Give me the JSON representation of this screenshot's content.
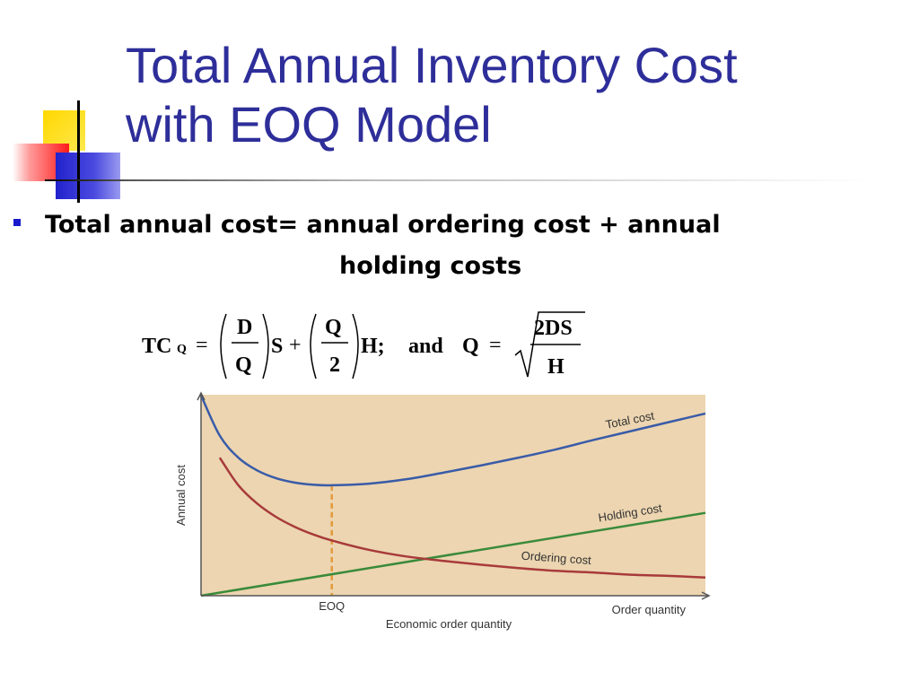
{
  "slide": {
    "title_line1": "Total Annual Inventory Cost",
    "title_line2": "with EOQ Model",
    "bullet_line1": "Total annual cost= annual ordering cost + annual",
    "bullet_line2": "holding  costs"
  },
  "formula": {
    "tc": "TC",
    "tc_sub": "Q",
    "eq": "=",
    "frac1_num": "D",
    "frac1_den": "Q",
    "s": "S",
    "plus": "+",
    "frac2_num": "Q",
    "frac2_den": "2",
    "h_end": "H;",
    "and": "and",
    "q": "Q",
    "eq2": "=",
    "root_num": "2DS",
    "root_den": "H"
  },
  "chart_data": {
    "type": "line",
    "title": "",
    "xlabel": "Economic order quantity",
    "ylabel": "Annual cost",
    "x_axis_end_label": "Order quantity",
    "eoq_label": "EOQ",
    "x": [
      0.3,
      0.4,
      0.5,
      0.6,
      0.7,
      0.8,
      0.9,
      1.0,
      1.2,
      1.4,
      1.6,
      1.8,
      2.0,
      2.2,
      2.4,
      2.6,
      2.8,
      3.0
    ],
    "series": [
      {
        "name": "Total cost",
        "color": "#3a5ba8",
        "values": [
          3.63,
          2.9,
          2.5,
          2.27,
          2.13,
          2.05,
          2.01,
          2.0,
          2.03,
          2.11,
          2.23,
          2.36,
          2.5,
          2.65,
          2.82,
          2.98,
          3.14,
          3.3
        ]
      },
      {
        "name": "Holding cost",
        "color": "#3a8a3a",
        "values": [
          0.15,
          0.2,
          0.25,
          0.3,
          0.35,
          0.4,
          0.45,
          0.5,
          0.6,
          0.7,
          0.8,
          0.9,
          1.0,
          1.1,
          1.2,
          1.3,
          1.4,
          1.5
        ]
      },
      {
        "name": "Ordering cost",
        "color": "#a83a3a",
        "values": [
          null,
          2.5,
          2.0,
          1.67,
          1.43,
          1.25,
          1.11,
          1.0,
          0.83,
          0.71,
          0.63,
          0.56,
          0.5,
          0.45,
          0.42,
          0.38,
          0.36,
          0.33
        ]
      }
    ],
    "eoq_x": 1.0,
    "plot_background": "#ecd5b0",
    "eoq_line_color": "#e39a3a"
  }
}
